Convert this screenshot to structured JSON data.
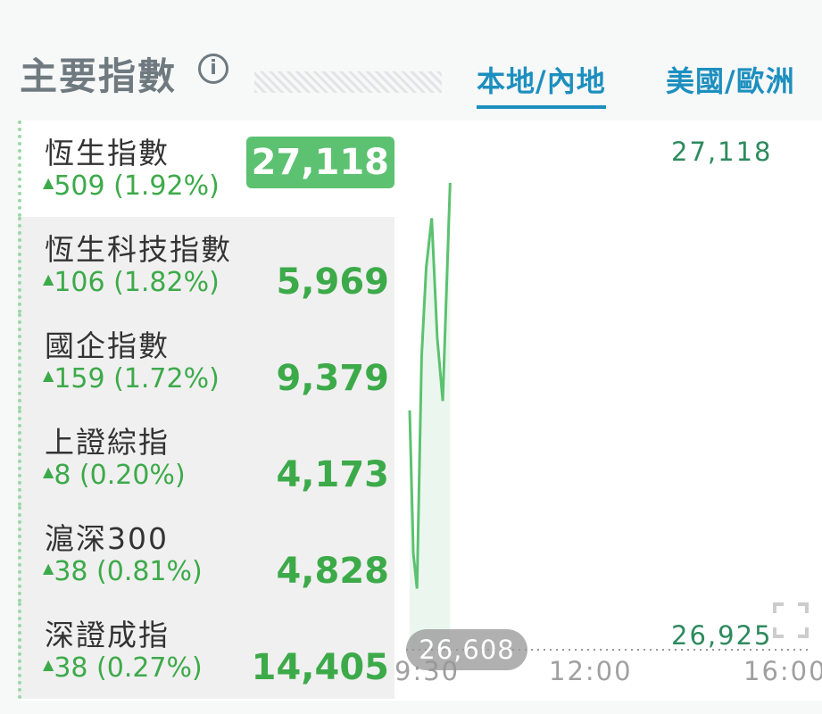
{
  "header": {
    "title": "主要指數",
    "info_icon": "info-circle-icon",
    "tabs": [
      {
        "label": "本地/內地",
        "active": true
      },
      {
        "label": "美國/歐洲",
        "active": false
      }
    ]
  },
  "indices": [
    {
      "name": "恆生指數",
      "change": "509 (1.92%)",
      "value": "27,118",
      "selected": true
    },
    {
      "name": "恆生科技指數",
      "change": "106 (1.82%)",
      "value": "5,969"
    },
    {
      "name": "國企指數",
      "change": "159 (1.72%)",
      "value": "9,379"
    },
    {
      "name": "上證綜指",
      "change": "8 (0.20%)",
      "value": "4,173"
    },
    {
      "name": "滬深300",
      "change": "38 (0.81%)",
      "value": "4,828"
    },
    {
      "name": "深證成指",
      "change": "38 (0.27%)",
      "value": "14,405"
    }
  ],
  "colors": {
    "up": "#3daa4a",
    "accent": "#1d8fbf",
    "line": "#5cc170"
  },
  "chart_data": {
    "type": "line",
    "high_label": "27,118",
    "low_label": "26,925",
    "prev_close_label": "26,608",
    "x_ticks": [
      "9:30",
      "12:00",
      "16:00"
    ],
    "ylim": [
      26925,
      27118
    ],
    "series": [
      {
        "x_minutes_from_open": [
          0,
          4,
          8,
          13,
          18,
          24,
          30,
          36,
          44
        ],
        "values": [
          27021,
          26960,
          26945,
          27044,
          27082,
          27103,
          27052,
          27025,
          27118
        ]
      }
    ]
  }
}
